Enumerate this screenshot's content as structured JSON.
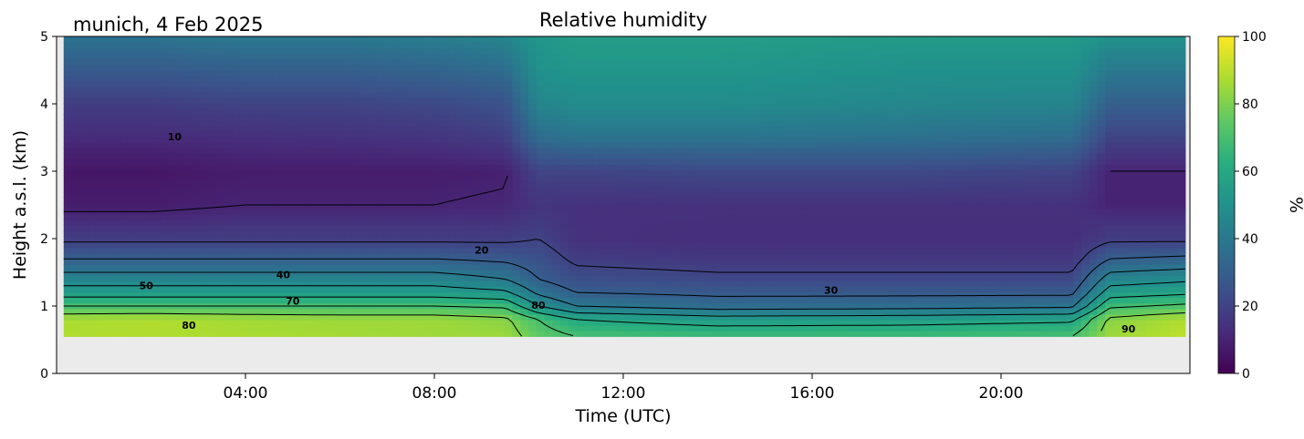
{
  "chart_data": {
    "type": "heatmap",
    "title": "Relative humidity",
    "subtitle": "munich, 4 Feb 2025",
    "xlabel": "Time (UTC)",
    "ylabel": "Height a.s.l. (km)",
    "xlim_hours": [
      0,
      24
    ],
    "ylim": [
      0,
      5
    ],
    "x_ticks": [
      {
        "hour": 4,
        "label": "04:00"
      },
      {
        "hour": 8,
        "label": "08:00"
      },
      {
        "hour": 12,
        "label": "12:00"
      },
      {
        "hour": 16,
        "label": "16:00"
      },
      {
        "hour": 20,
        "label": "20:00"
      }
    ],
    "y_ticks": [
      0,
      1,
      2,
      3,
      4,
      5
    ],
    "colorbar": {
      "label": "%",
      "range": [
        0,
        100
      ],
      "ticks": [
        0,
        20,
        40,
        60,
        80,
        100
      ],
      "colormap": "viridis"
    },
    "data_extent": {
      "x_hours": [
        0.15,
        23.9
      ],
      "y_km": [
        0.55,
        5
      ]
    },
    "no_data_color": "#ebebeb",
    "times_h": [
      0.15,
      2,
      4,
      6,
      8,
      9.5,
      10.2,
      11,
      14,
      18,
      21.5,
      22.3,
      23.9
    ],
    "heights_km": [
      0.55,
      0.8,
      1.0,
      1.2,
      1.4,
      1.7,
      2.0,
      2.5,
      3.0,
      3.5,
      4.0,
      4.5,
      5.0
    ],
    "rh": [
      [
        88,
        87,
        70,
        55,
        45,
        30,
        18,
        8,
        6,
        12,
        18,
        28,
        38
      ],
      [
        88,
        88,
        70,
        55,
        45,
        30,
        18,
        8,
        6,
        12,
        18,
        28,
        38
      ],
      [
        87,
        86,
        70,
        55,
        45,
        30,
        18,
        10,
        8,
        13,
        20,
        30,
        40
      ],
      [
        86,
        85,
        70,
        55,
        45,
        30,
        18,
        10,
        8,
        14,
        20,
        30,
        40
      ],
      [
        85,
        85,
        70,
        55,
        45,
        30,
        18,
        10,
        8,
        15,
        22,
        32,
        42
      ],
      [
        85,
        82,
        68,
        52,
        40,
        28,
        18,
        11,
        9,
        18,
        25,
        35,
        45
      ],
      [
        75,
        70,
        50,
        38,
        30,
        25,
        20,
        15,
        20,
        35,
        45,
        50,
        52
      ],
      [
        70,
        60,
        40,
        30,
        24,
        18,
        14,
        14,
        20,
        38,
        48,
        52,
        55
      ],
      [
        68,
        55,
        35,
        28,
        22,
        16,
        13,
        14,
        22,
        38,
        48,
        52,
        55
      ],
      [
        68,
        56,
        36,
        28,
        22,
        16,
        13,
        14,
        22,
        37,
        46,
        50,
        54
      ],
      [
        70,
        58,
        38,
        28,
        22,
        16,
        13,
        14,
        20,
        35,
        45,
        50,
        54
      ],
      [
        85,
        82,
        68,
        55,
        45,
        30,
        18,
        10,
        10,
        20,
        30,
        40,
        50
      ],
      [
        90,
        88,
        72,
        58,
        48,
        32,
        18,
        10,
        10,
        20,
        30,
        40,
        50
      ]
    ],
    "contour_labels": [
      {
        "text": "10",
        "x_h": 2.5,
        "y_km": 3.5
      },
      {
        "text": "20",
        "x_h": 9.0,
        "y_km": 1.82
      },
      {
        "text": "30",
        "x_h": 16.4,
        "y_km": 1.22
      },
      {
        "text": "40",
        "x_h": 4.8,
        "y_km": 1.45
      },
      {
        "text": "50",
        "x_h": 1.9,
        "y_km": 1.29
      },
      {
        "text": "70",
        "x_h": 5.0,
        "y_km": 1.06
      },
      {
        "text": "80",
        "x_h": 2.8,
        "y_km": 0.7
      },
      {
        "text": "80",
        "x_h": 10.2,
        "y_km": 1.0
      },
      {
        "text": "90",
        "x_h": 22.7,
        "y_km": 0.65
      }
    ]
  }
}
